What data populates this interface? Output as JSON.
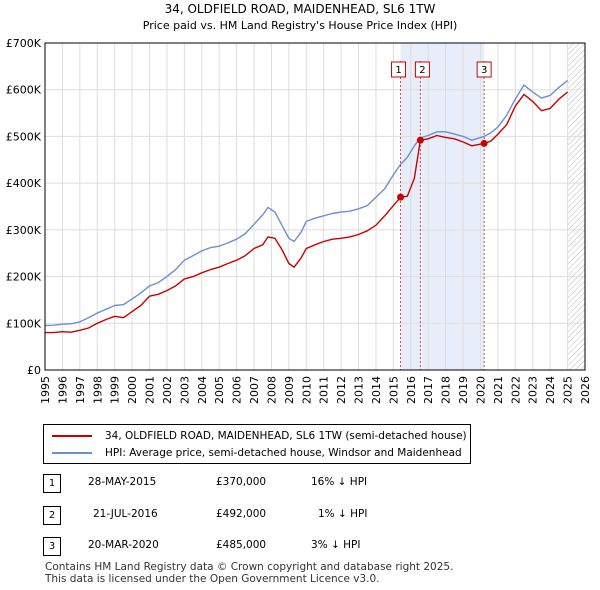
{
  "chart_data": {
    "type": "line",
    "title": "34, OLDFIELD ROAD, MAIDENHEAD, SL6 1TW",
    "subtitle": "Price paid vs. HM Land Registry's House Price Index (HPI)",
    "xlabel": "",
    "ylabel": "",
    "xlim": [
      1995,
      2026
    ],
    "ylim": [
      0,
      700000
    ],
    "x_ticks": [
      1995,
      1996,
      1997,
      1998,
      1999,
      2000,
      2001,
      2002,
      2003,
      2004,
      2005,
      2006,
      2007,
      2008,
      2009,
      2010,
      2011,
      2012,
      2013,
      2014,
      2015,
      2016,
      2017,
      2018,
      2019,
      2020,
      2021,
      2022,
      2023,
      2024,
      2025,
      2026
    ],
    "y_ticks": [
      {
        "value": 0,
        "label": "£0"
      },
      {
        "value": 100000,
        "label": "£100K"
      },
      {
        "value": 200000,
        "label": "£200K"
      },
      {
        "value": 300000,
        "label": "£300K"
      },
      {
        "value": 400000,
        "label": "£400K"
      },
      {
        "value": 500000,
        "label": "£500K"
      },
      {
        "value": 600000,
        "label": "£600K"
      },
      {
        "value": 700000,
        "label": "£700K"
      }
    ],
    "grid": true,
    "future_hatch_start": 2025.0,
    "sale_shading": [
      2015.41,
      2020.21
    ],
    "series": [
      {
        "name": "34, OLDFIELD ROAD, MAIDENHEAD, SL6 1TW (semi-detached house)",
        "color": "#cc0000",
        "points": [
          [
            1995.0,
            80000
          ],
          [
            1995.5,
            80000
          ],
          [
            1996.0,
            82000
          ],
          [
            1996.5,
            81000
          ],
          [
            1997.0,
            85000
          ],
          [
            1997.5,
            90000
          ],
          [
            1998.0,
            100000
          ],
          [
            1998.5,
            108000
          ],
          [
            1999.0,
            115000
          ],
          [
            1999.5,
            112000
          ],
          [
            2000.0,
            125000
          ],
          [
            2000.5,
            138000
          ],
          [
            2001.0,
            158000
          ],
          [
            2001.5,
            162000
          ],
          [
            2002.0,
            170000
          ],
          [
            2002.5,
            180000
          ],
          [
            2003.0,
            195000
          ],
          [
            2003.5,
            200000
          ],
          [
            2004.0,
            208000
          ],
          [
            2004.5,
            215000
          ],
          [
            2005.0,
            220000
          ],
          [
            2005.5,
            228000
          ],
          [
            2006.0,
            235000
          ],
          [
            2006.5,
            245000
          ],
          [
            2007.0,
            260000
          ],
          [
            2007.5,
            268000
          ],
          [
            2007.8,
            285000
          ],
          [
            2008.2,
            282000
          ],
          [
            2008.6,
            258000
          ],
          [
            2009.0,
            228000
          ],
          [
            2009.3,
            220000
          ],
          [
            2009.7,
            240000
          ],
          [
            2010.0,
            260000
          ],
          [
            2010.5,
            268000
          ],
          [
            2011.0,
            275000
          ],
          [
            2011.5,
            280000
          ],
          [
            2012.0,
            282000
          ],
          [
            2012.5,
            285000
          ],
          [
            2013.0,
            290000
          ],
          [
            2013.5,
            298000
          ],
          [
            2014.0,
            310000
          ],
          [
            2014.5,
            330000
          ],
          [
            2015.0,
            352000
          ],
          [
            2015.41,
            370000
          ],
          [
            2015.8,
            372000
          ],
          [
            2016.2,
            410000
          ],
          [
            2016.55,
            492000
          ],
          [
            2017.0,
            495000
          ],
          [
            2017.5,
            502000
          ],
          [
            2018.0,
            498000
          ],
          [
            2018.5,
            495000
          ],
          [
            2019.0,
            488000
          ],
          [
            2019.5,
            480000
          ],
          [
            2020.21,
            485000
          ],
          [
            2020.6,
            490000
          ],
          [
            2021.0,
            505000
          ],
          [
            2021.5,
            525000
          ],
          [
            2022.0,
            565000
          ],
          [
            2022.5,
            590000
          ],
          [
            2023.0,
            575000
          ],
          [
            2023.5,
            555000
          ],
          [
            2024.0,
            560000
          ],
          [
            2024.5,
            580000
          ],
          [
            2025.0,
            595000
          ]
        ]
      },
      {
        "name": "HPI: Average price, semi-detached house, Windsor and Maidenhead",
        "color": "#6b8fd4",
        "points": [
          [
            1995.0,
            95000
          ],
          [
            1995.5,
            96000
          ],
          [
            1996.0,
            98000
          ],
          [
            1996.5,
            99000
          ],
          [
            1997.0,
            103000
          ],
          [
            1997.5,
            112000
          ],
          [
            1998.0,
            122000
          ],
          [
            1998.5,
            130000
          ],
          [
            1999.0,
            138000
          ],
          [
            1999.5,
            140000
          ],
          [
            2000.0,
            152000
          ],
          [
            2000.5,
            165000
          ],
          [
            2001.0,
            180000
          ],
          [
            2001.5,
            187000
          ],
          [
            2002.0,
            200000
          ],
          [
            2002.5,
            215000
          ],
          [
            2003.0,
            235000
          ],
          [
            2003.5,
            245000
          ],
          [
            2004.0,
            255000
          ],
          [
            2004.5,
            262000
          ],
          [
            2005.0,
            265000
          ],
          [
            2005.5,
            272000
          ],
          [
            2006.0,
            280000
          ],
          [
            2006.5,
            292000
          ],
          [
            2007.0,
            312000
          ],
          [
            2007.5,
            332000
          ],
          [
            2007.8,
            348000
          ],
          [
            2008.2,
            338000
          ],
          [
            2008.6,
            310000
          ],
          [
            2009.0,
            282000
          ],
          [
            2009.3,
            275000
          ],
          [
            2009.7,
            295000
          ],
          [
            2010.0,
            318000
          ],
          [
            2010.5,
            325000
          ],
          [
            2011.0,
            330000
          ],
          [
            2011.5,
            335000
          ],
          [
            2012.0,
            338000
          ],
          [
            2012.5,
            340000
          ],
          [
            2013.0,
            345000
          ],
          [
            2013.5,
            352000
          ],
          [
            2014.0,
            370000
          ],
          [
            2014.5,
            388000
          ],
          [
            2015.0,
            418000
          ],
          [
            2015.41,
            440000
          ],
          [
            2015.8,
            455000
          ],
          [
            2016.2,
            480000
          ],
          [
            2016.55,
            497000
          ],
          [
            2017.0,
            502000
          ],
          [
            2017.5,
            510000
          ],
          [
            2018.0,
            510000
          ],
          [
            2018.5,
            505000
          ],
          [
            2019.0,
            500000
          ],
          [
            2019.5,
            492000
          ],
          [
            2020.21,
            500000
          ],
          [
            2020.6,
            508000
          ],
          [
            2021.0,
            520000
          ],
          [
            2021.5,
            545000
          ],
          [
            2022.0,
            580000
          ],
          [
            2022.5,
            610000
          ],
          [
            2023.0,
            595000
          ],
          [
            2023.5,
            582000
          ],
          [
            2024.0,
            588000
          ],
          [
            2024.5,
            605000
          ],
          [
            2025.0,
            620000
          ]
        ]
      }
    ],
    "sales": [
      {
        "label": "1",
        "x": 2015.41,
        "price": 370000
      },
      {
        "label": "2",
        "x": 2016.55,
        "price": 492000
      },
      {
        "label": "3",
        "x": 2020.21,
        "price": 485000
      }
    ]
  },
  "legend": {
    "items": [
      {
        "label": "34, OLDFIELD ROAD, MAIDENHEAD, SL6 1TW (semi-detached house)",
        "color": "#cc0000"
      },
      {
        "label": "HPI: Average price, semi-detached house, Windsor and Maidenhead",
        "color": "#6b8fd4"
      }
    ]
  },
  "transactions": [
    {
      "num": "1",
      "date": "28-MAY-2015",
      "price": "£370,000",
      "hpi": "16% ↓ HPI"
    },
    {
      "num": "2",
      "date": "21-JUL-2016",
      "price": "£492,000",
      "hpi": "1% ↓ HPI"
    },
    {
      "num": "3",
      "date": "20-MAR-2020",
      "price": "£485,000",
      "hpi": "3% ↓ HPI"
    }
  ],
  "footer": {
    "line1": "Contains HM Land Registry data © Crown copyright and database right 2025.",
    "line2": "This data is licensed under the Open Government Licence v3.0."
  }
}
